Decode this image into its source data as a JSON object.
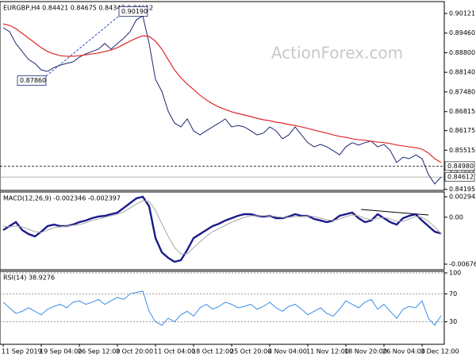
{
  "chart_data": [
    {
      "type": "line",
      "title": "EURGBP,H4 0.84421 0.84675 0.84347 0.84612",
      "watermark": "ActionForex.com",
      "ylim": [
        0.84188,
        0.90442
      ],
      "yticks": [
        0.90121,
        {
          "value": 0.8946,
          "label": "0.89460"
        },
        {
          "value": 0.888,
          "label": "0.88800"
        },
        {
          "value": 0.8814,
          "label": "0.88140"
        },
        {
          "value": 0.8748,
          "label": "0.87480"
        },
        0.86815,
        0.86175,
        0.85515,
        0.84855,
        0.84195
      ],
      "levels": [
        {
          "value": 0.8498,
          "label": "0.84980"
        },
        0.84612
      ],
      "annotations": [
        {
          "value": 0.9019,
          "label": "0.90190"
        },
        {
          "value": 0.8786,
          "label": "0.87860"
        }
      ],
      "series": [
        {
          "color": "#1c2770",
          "values": [
            0.8964,
            0.8951,
            0.8911,
            0.8884,
            0.8857,
            0.8844,
            0.8822,
            0.8817,
            0.883,
            0.8838,
            0.8844,
            0.8849,
            0.8865,
            0.8876,
            0.8884,
            0.8892,
            0.8911,
            0.8892,
            0.8911,
            0.8929,
            0.8951,
            0.8991,
            0.9004,
            0.8911,
            0.879,
            0.875,
            0.8683,
            0.8643,
            0.863,
            0.8657,
            0.8617,
            0.8603,
            0.8617,
            0.863,
            0.8643,
            0.8657,
            0.863,
            0.8635,
            0.863,
            0.8617,
            0.8603,
            0.8609,
            0.863,
            0.8617,
            0.859,
            0.8603,
            0.863,
            0.8603,
            0.8577,
            0.8563,
            0.8571,
            0.8563,
            0.855,
            0.8536,
            0.8563,
            0.8577,
            0.8569,
            0.8577,
            0.8582,
            0.8563,
            0.8571,
            0.855,
            0.851,
            0.8528,
            0.8523,
            0.8536,
            0.8523,
            0.847,
            0.8438,
            0.84612
          ]
        },
        {
          "color": "#e0262a",
          "values": [
            0.8977,
            0.8972,
            0.8961,
            0.8945,
            0.8929,
            0.8913,
            0.8897,
            0.8884,
            0.8876,
            0.887,
            0.8868,
            0.8868,
            0.887,
            0.8873,
            0.8876,
            0.8879,
            0.8884,
            0.8889,
            0.8897,
            0.8908,
            0.8919,
            0.8929,
            0.8937,
            0.8935,
            0.8919,
            0.8892,
            0.8857,
            0.8822,
            0.8796,
            0.8774,
            0.8756,
            0.8737,
            0.8721,
            0.8708,
            0.8697,
            0.8689,
            0.8681,
            0.8675,
            0.867,
            0.8665,
            0.8659,
            0.8654,
            0.8651,
            0.8646,
            0.8643,
            0.8638,
            0.8635,
            0.863,
            0.8625,
            0.8619,
            0.8614,
            0.8609,
            0.8603,
            0.8598,
            0.8595,
            0.859,
            0.8587,
            0.8585,
            0.8582,
            0.8579,
            0.8577,
            0.8574,
            0.8569,
            0.8566,
            0.8563,
            0.856,
            0.8555,
            0.8542,
            0.8523,
            0.851
          ]
        }
      ]
    },
    {
      "type": "line",
      "title": "MACD(12,26,9) -0.002346 -0.002397",
      "ylim": [
        -0.006761,
        0.002942
      ],
      "yticks": [
        0.002942,
        {
          "value": 0,
          "label": "0.00"
        },
        -0.006761
      ],
      "series": [
        {
          "color": "#1a1a8c",
          "values": [
            -0.00185,
            -0.00128,
            -0.00071,
            -0.00185,
            -0.00243,
            -0.00277,
            -0.00208,
            -0.00128,
            -0.00106,
            -0.00128,
            -0.00128,
            -0.00106,
            -0.00071,
            -0.00048,
            -0.00014,
            9e-05,
            0.0002,
            0.00043,
            0.00066,
            0.00134,
            0.00203,
            0.00271,
            0.00294,
            0.00157,
            -0.003,
            -0.00505,
            -0.00585,
            -0.00642,
            -0.00619,
            -0.00471,
            -0.003,
            -0.00243,
            -0.00185,
            -0.00128,
            -0.00094,
            -0.00048,
            -0.00014,
            0.0002,
            0.00043,
            0.00043,
            0.0002,
            9e-05,
            0.0002,
            -0.00014,
            -0.00014,
            9e-05,
            0.00043,
            0.0002,
            0.0002,
            -0.00026,
            -0.00048,
            -0.00071,
            -0.00048,
            0.0002,
            0.00043,
            0.00066,
            -0.00014,
            -0.00071,
            -0.00048,
            0.00043,
            -0.00014,
            -0.00071,
            -0.00106,
            -0.00014,
            0.0002,
            0.00043,
            -0.00048,
            -0.00128,
            -0.00208,
            -0.002346
          ]
        },
        {
          "color": "#a8a8a8",
          "values": [
            -0.00128,
            -0.0014,
            -0.00128,
            -0.0014,
            -0.00174,
            -0.00208,
            -0.0022,
            -0.00185,
            -0.00151,
            -0.0014,
            -0.00128,
            -0.00117,
            -0.00106,
            -0.00083,
            -0.00048,
            -0.00026,
            -3e-05,
            0.0002,
            0.00043,
            0.00077,
            0.00134,
            0.00191,
            0.00237,
            0.00226,
            0.001,
            -0.00094,
            -0.00277,
            -0.00437,
            -0.00528,
            -0.00528,
            -0.00437,
            -0.00357,
            -0.00277,
            -0.00208,
            -0.00163,
            -0.00117,
            -0.00071,
            -0.00037,
            -3e-05,
            0.0002,
            0.0002,
            0.0002,
            0.0002,
            9e-05,
            -3e-05,
            -3e-05,
            9e-05,
            9e-05,
            0.0002,
            9e-05,
            -0.00014,
            -0.00037,
            -0.00048,
            -0.00026,
            9e-05,
            0.00032,
            0.0002,
            -0.00014,
            -0.00037,
            -0.00014,
            -3e-05,
            -0.00026,
            -0.0006,
            -0.0006,
            -0.00026,
            9e-05,
            -3e-05,
            -0.0006,
            -0.0014,
            -0.002397
          ]
        }
      ]
    },
    {
      "type": "line",
      "title": "RSI(14) 38.9276",
      "ylim": [
        0,
        100
      ],
      "yticks": [
        100,
        70,
        30
      ],
      "grid": true,
      "categories": [
        "11 Sep 2019",
        null,
        null,
        null,
        null,
        null,
        "19 Sep 04:00",
        null,
        null,
        null,
        null,
        null,
        "26 Sep 12:00",
        null,
        null,
        null,
        null,
        null,
        "3 Oct 20:00",
        null,
        null,
        null,
        null,
        null,
        "11 Oct 04:00",
        null,
        null,
        null,
        null,
        null,
        "18 Oct 12:00",
        null,
        null,
        null,
        null,
        null,
        "25 Oct 20:00",
        null,
        null,
        null,
        null,
        null,
        "4 Nov 04:00",
        null,
        null,
        null,
        null,
        null,
        "11 Nov 12:00",
        null,
        null,
        null,
        null,
        null,
        "18 Nov 20:00",
        null,
        null,
        null,
        null,
        null,
        "26 Nov 04:00",
        null,
        null,
        null,
        null,
        null,
        "3 Dec 12:00",
        null,
        null,
        null
      ],
      "series": [
        {
          "color": "#3a8ee6",
          "values": [
            58,
            50,
            42,
            45,
            50,
            45,
            40,
            48,
            52,
            55,
            50,
            58,
            60,
            55,
            58,
            62,
            55,
            60,
            65,
            62,
            70,
            72,
            74,
            45,
            30,
            25,
            35,
            30,
            40,
            45,
            38,
            50,
            55,
            48,
            52,
            58,
            55,
            50,
            52,
            55,
            48,
            52,
            58,
            50,
            45,
            52,
            55,
            48,
            40,
            45,
            50,
            42,
            38,
            48,
            60,
            55,
            50,
            58,
            62,
            48,
            55,
            45,
            35,
            48,
            52,
            50,
            60,
            35,
            25,
            38.9276
          ]
        }
      ]
    }
  ]
}
